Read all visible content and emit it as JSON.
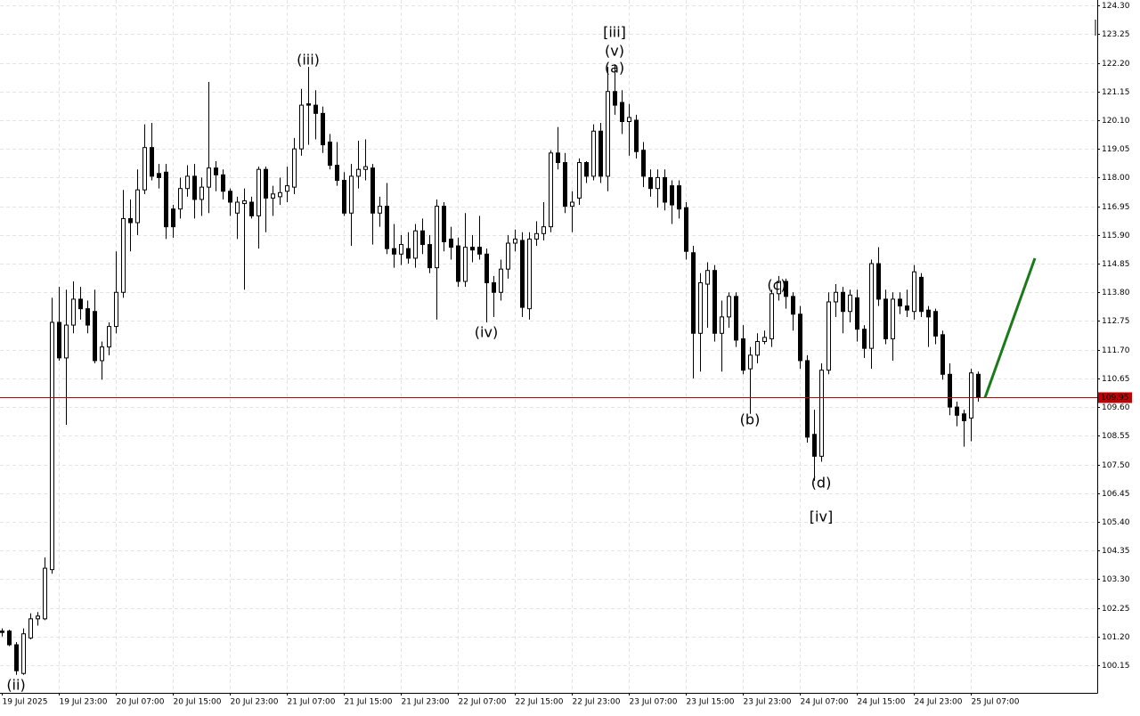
{
  "chart_data": {
    "type": "candlestick",
    "categories": [
      "19 Jul 2025",
      null,
      null,
      null,
      null,
      null,
      null,
      null,
      "19 Jul 23:00",
      null,
      null,
      null,
      null,
      null,
      null,
      null,
      "20 Jul 07:00",
      null,
      null,
      null,
      null,
      null,
      null,
      null,
      "20 Jul 15:00",
      null,
      null,
      null,
      null,
      null,
      null,
      null,
      "20 Jul 23:00",
      null,
      null,
      null,
      null,
      null,
      null,
      null,
      "21 Jul 07:00",
      null,
      null,
      null,
      null,
      null,
      null,
      null,
      "21 Jul 15:00",
      null,
      null,
      null,
      null,
      null,
      null,
      null,
      "21 Jul 23:00",
      null,
      null,
      null,
      null,
      null,
      null,
      null,
      "22 Jul 07:00",
      null,
      null,
      null,
      null,
      null,
      null,
      null,
      "22 Jul 15:00",
      null,
      null,
      null,
      null,
      null,
      null,
      null,
      "22 Jul 23:00",
      null,
      null,
      null,
      null,
      null,
      null,
      null,
      "23 Jul 07:00",
      null,
      null,
      null,
      null,
      null,
      null,
      null,
      "23 Jul 15:00",
      null,
      null,
      null,
      null,
      null,
      null,
      null,
      "23 Jul 23:00",
      null,
      null,
      null,
      null,
      null,
      null,
      null,
      "24 Jul 07:00",
      null,
      null,
      null,
      null,
      null,
      null,
      null,
      "24 Jul 15:00",
      null,
      null,
      null,
      null,
      null,
      null,
      null,
      "24 Jul 23:00",
      null,
      null,
      null,
      null,
      null,
      null,
      null,
      "25 Jul 07:00",
      null
    ],
    "open": [
      101.4,
      101.4,
      100.9,
      99.85,
      101.15,
      101.85,
      101.85,
      103.65,
      112.7,
      111.4,
      112.6,
      113.55,
      113.2,
      113.1,
      111.3,
      111.8,
      112.55,
      113.8,
      116.5,
      116.35,
      117.55,
      119.1,
      118.15,
      118.2,
      116.85,
      116.85,
      117.6,
      118.05,
      117.2,
      117.65,
      118.35,
      118.1,
      117.5,
      116.7,
      117.05,
      117.1,
      116.6,
      118.3,
      117.25,
      117.3,
      117.5,
      117.65,
      119.05,
      120.7,
      120.65,
      120.35,
      119.3,
      118.45,
      117.9,
      116.7,
      118.05,
      118.3,
      118.35,
      116.7,
      116.95,
      115.4,
      115.2,
      115.4,
      115.05,
      116.05,
      115.55,
      114.7,
      116.95,
      115.75,
      115.5,
      114.2,
      115.45,
      115.45,
      115.2,
      114.15,
      113.8,
      114.65,
      115.6,
      115.7,
      113.2,
      115.75,
      115.95,
      116.2,
      118.9,
      118.55,
      116.95,
      117.25,
      118.55,
      118.05,
      119.7,
      118.05,
      121.15,
      120.75,
      120.05,
      120.1,
      119.0,
      118.0,
      117.6,
      118.0,
      117.7,
      117.7,
      116.9,
      115.25,
      112.3,
      114.1,
      114.6,
      112.3,
      112.9,
      113.65,
      112.1,
      111.0,
      111.5,
      112.0,
      112.1,
      113.75,
      114.2,
      113.65,
      113.0,
      111.3,
      108.6,
      107.8,
      110.95,
      113.45,
      113.8,
      113.1,
      113.6,
      112.45,
      111.75,
      114.85,
      113.55,
      112.1,
      113.55,
      113.3,
      113.1,
      114.35,
      113.15,
      113.1,
      112.25,
      110.8,
      109.6,
      109.35,
      109.2,
      110.8
    ],
    "high": [
      101.5,
      101.45,
      101.0,
      101.5,
      102.05,
      102.1,
      104.1,
      113.6,
      114.0,
      113.9,
      114.2,
      114.0,
      113.5,
      113.9,
      112.0,
      112.7,
      115.3,
      117.55,
      117.2,
      118.3,
      119.95,
      120.0,
      118.5,
      118.5,
      117.0,
      118.0,
      118.45,
      118.5,
      118.0,
      121.5,
      118.6,
      118.3,
      117.6,
      117.3,
      117.6,
      117.3,
      118.4,
      118.4,
      117.7,
      118.0,
      118.4,
      119.45,
      121.25,
      122.05,
      121.2,
      120.6,
      119.6,
      119.3,
      118.2,
      118.5,
      119.35,
      119.4,
      118.5,
      117.3,
      117.8,
      116.3,
      115.9,
      116.0,
      116.3,
      116.5,
      115.9,
      117.2,
      117.1,
      116.2,
      115.8,
      116.7,
      115.9,
      116.6,
      115.4,
      114.4,
      115.0,
      115.9,
      116.1,
      116.0,
      116.0,
      116.4,
      117.1,
      119.0,
      119.85,
      118.9,
      117.5,
      118.7,
      118.6,
      119.95,
      120.0,
      122.05,
      122.15,
      121.2,
      120.7,
      120.3,
      119.3,
      118.3,
      118.3,
      118.3,
      117.9,
      117.9,
      117.1,
      115.5,
      114.5,
      114.9,
      114.8,
      113.5,
      113.8,
      113.8,
      112.6,
      111.8,
      112.3,
      112.4,
      113.9,
      114.4,
      114.3,
      113.8,
      113.3,
      111.5,
      109.5,
      111.2,
      113.8,
      114.1,
      114.0,
      113.9,
      113.9,
      112.6,
      115.0,
      115.45,
      113.9,
      113.8,
      113.8,
      113.9,
      114.8,
      114.5,
      113.3,
      113.2,
      112.4,
      111.2,
      109.8,
      109.5,
      111.0,
      110.9
    ],
    "low": [
      101.2,
      100.85,
      99.8,
      99.8,
      101.1,
      101.6,
      101.8,
      103.5,
      111.3,
      108.95,
      112.3,
      112.8,
      112.3,
      111.2,
      110.6,
      111.5,
      112.3,
      113.6,
      115.3,
      115.9,
      117.4,
      117.9,
      117.6,
      115.75,
      115.8,
      116.5,
      117.3,
      116.5,
      116.6,
      116.7,
      117.5,
      117.2,
      116.6,
      115.75,
      113.9,
      116.5,
      115.4,
      116.0,
      116.6,
      117.0,
      117.1,
      117.4,
      118.8,
      119.2,
      119.4,
      118.9,
      118.3,
      117.7,
      116.6,
      115.5,
      117.6,
      117.9,
      115.55,
      116.2,
      115.2,
      114.7,
      114.8,
      114.85,
      114.7,
      115.2,
      114.5,
      112.8,
      115.3,
      115.0,
      114.0,
      114.0,
      114.9,
      115.0,
      112.7,
      112.9,
      113.5,
      114.3,
      115.3,
      112.9,
      112.8,
      115.5,
      115.7,
      116.0,
      118.3,
      116.7,
      116.0,
      117.0,
      117.8,
      117.9,
      117.8,
      117.5,
      120.3,
      119.6,
      118.8,
      118.7,
      117.65,
      117.3,
      116.9,
      116.8,
      116.3,
      116.5,
      115.0,
      110.65,
      110.9,
      112.5,
      112.0,
      110.9,
      112.5,
      111.8,
      110.8,
      109.35,
      111.2,
      111.9,
      111.8,
      113.5,
      113.2,
      112.4,
      111.0,
      108.3,
      106.9,
      107.6,
      110.8,
      112.9,
      112.3,
      112.7,
      112.0,
      111.4,
      111.0,
      113.3,
      111.9,
      111.3,
      113.0,
      112.9,
      112.8,
      112.9,
      111.8,
      111.9,
      110.6,
      109.3,
      108.9,
      108.15,
      108.35,
      109.8
    ],
    "close": [
      101.35,
      100.9,
      99.95,
      101.3,
      101.85,
      101.95,
      103.7,
      112.7,
      111.4,
      112.6,
      113.55,
      113.2,
      112.6,
      111.3,
      111.8,
      112.55,
      113.8,
      116.5,
      116.35,
      117.55,
      119.1,
      118.05,
      118.0,
      116.2,
      116.2,
      117.6,
      118.05,
      117.2,
      117.65,
      118.35,
      118.1,
      117.5,
      117.1,
      117.1,
      117.15,
      116.6,
      118.3,
      117.25,
      117.4,
      117.45,
      117.7,
      119.05,
      120.65,
      120.65,
      120.35,
      119.2,
      118.45,
      117.9,
      116.7,
      118.05,
      118.3,
      118.4,
      116.7,
      116.95,
      115.4,
      115.2,
      115.55,
      115.05,
      116.05,
      115.55,
      114.7,
      116.95,
      115.65,
      115.45,
      114.2,
      115.45,
      115.35,
      115.2,
      114.15,
      113.8,
      114.65,
      115.6,
      115.75,
      113.25,
      115.75,
      115.95,
      116.2,
      118.9,
      118.55,
      116.95,
      117.1,
      118.55,
      118.05,
      119.7,
      118.05,
      121.15,
      120.65,
      120.05,
      120.2,
      118.95,
      118.05,
      117.6,
      118.0,
      117.1,
      117.0,
      116.85,
      115.3,
      112.3,
      114.15,
      114.6,
      112.3,
      112.9,
      113.65,
      112.05,
      110.95,
      111.5,
      112.0,
      112.15,
      113.75,
      114.2,
      113.65,
      113.0,
      111.3,
      108.5,
      107.8,
      110.95,
      113.45,
      113.8,
      113.1,
      113.7,
      112.45,
      111.75,
      114.85,
      113.55,
      112.1,
      113.55,
      113.3,
      113.15,
      114.55,
      113.1,
      112.9,
      112.2,
      110.8,
      109.6,
      109.3,
      109.1,
      110.85,
      109.95
    ],
    "up_color": "#ffffff",
    "down_color": "#000000",
    "wick_color": "#000000",
    "ylim": [
      99.14,
      124.5
    ],
    "yticks": [
      {
        "value": 124.3,
        "label": "124.30"
      },
      123.25,
      {
        "value": 122.2,
        "label": "122.20"
      },
      121.15,
      {
        "value": 120.1,
        "label": "120.10"
      },
      119.05,
      {
        "value": 118,
        "label": "118.00"
      },
      116.95,
      {
        "value": 115.9,
        "label": "115.90"
      },
      114.85,
      {
        "value": 113.8,
        "label": "113.80"
      },
      112.75,
      {
        "value": 111.7,
        "label": "111.70"
      },
      110.65,
      {
        "value": 109.6,
        "label": "109.60"
      },
      108.55,
      {
        "value": 107.5,
        "label": "107.50"
      },
      106.45,
      {
        "value": 105.4,
        "label": "105.40"
      },
      104.35,
      {
        "value": 103.3,
        "label": "103.30"
      },
      102.25,
      {
        "value": 101.2,
        "label": "101.20"
      },
      100.15
    ],
    "grid": true,
    "current_price": 109.95,
    "current_price_color": "#c00000",
    "annotations": [
      {
        "text": "(ii)",
        "color": "#2020c8"
      },
      {
        "text": "(iii)",
        "color": "#2020c8"
      },
      {
        "text": "[iii]",
        "color": "#44c044"
      },
      {
        "text": "(v)",
        "color": "#2020c8"
      },
      {
        "text": "(a)",
        "color": "#2020c8"
      },
      {
        "text": "(iv)",
        "color": "#2020c8"
      },
      {
        "text": "(b)",
        "color": "#2020c8"
      },
      {
        "text": "(c)",
        "color": "#2020c8"
      },
      {
        "text": "(d)",
        "color": "#2020c8"
      },
      {
        "text": "[iv]",
        "color": "#44c044"
      }
    ],
    "forecast_color": "#1a7a1a"
  }
}
